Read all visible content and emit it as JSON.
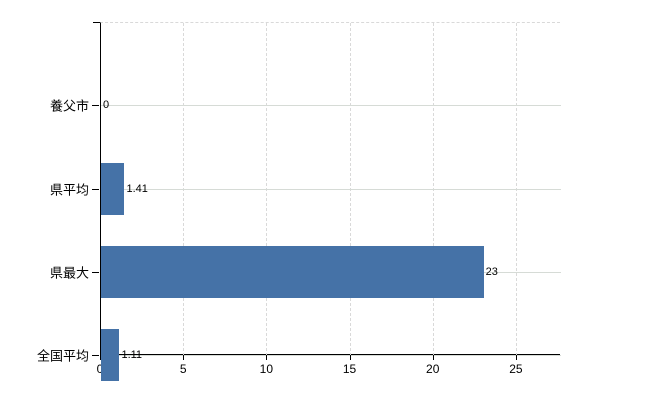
{
  "chart_data": {
    "type": "bar",
    "orientation": "horizontal",
    "title": "",
    "xlabel": "",
    "ylabel": "",
    "categories": [
      "養父市",
      "県平均",
      "県最大",
      "全国平均"
    ],
    "values": [
      0,
      1.41,
      23,
      1.11
    ],
    "value_labels": [
      "0",
      "1.41",
      "23",
      "1.11"
    ],
    "x_ticks": [
      "0",
      "5",
      "10",
      "15",
      "20",
      "25"
    ],
    "x_tick_values": [
      0,
      5,
      10,
      15,
      20,
      25
    ],
    "xlim": [
      0,
      27.65
    ],
    "grid": true,
    "legend": false,
    "colors": {
      "bar": "#4572A7",
      "axis": "#000000",
      "vertical_gridline": "#d9d9d9",
      "horizontal_gridline": "#d6dbd6",
      "text": "#000000",
      "background": "#ffffff"
    }
  }
}
